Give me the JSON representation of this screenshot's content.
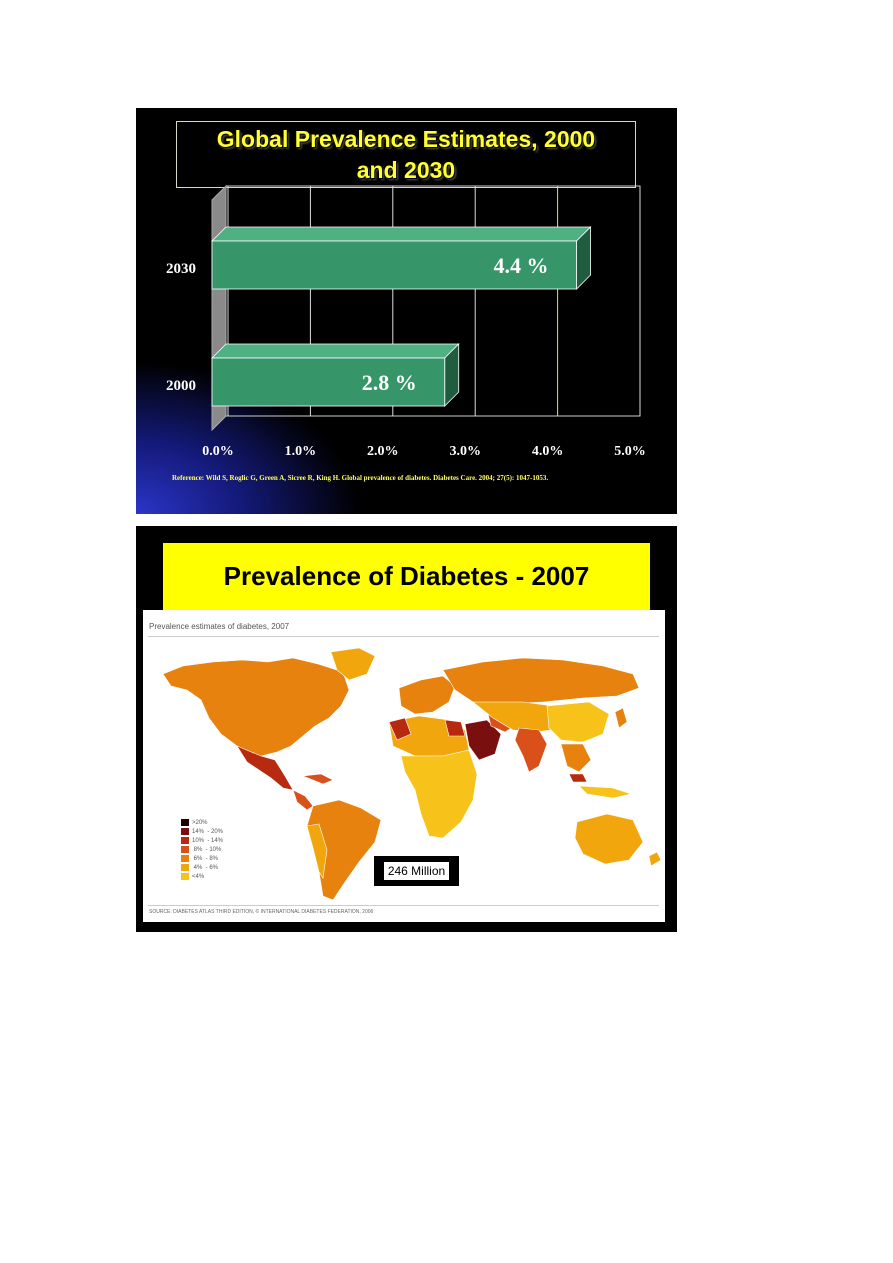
{
  "slide1": {
    "title_line1": "Global Prevalence Estimates, 2000",
    "title_line2": "and 2030",
    "reference": "Reference:  Wild S, Roglic G, Green A, Sicree R, King H. Global prevalence of diabetes. Diabetes Care. 2004; 27(5): 1047-1053."
  },
  "slide2": {
    "title": "Prevalence of Diabetes - 2007",
    "map_heading": "Prevalence estimates of diabetes, 2007",
    "source": "SOURCE: DIABETES ATLAS THIRD EDITION, © INTERNATIONAL DIABETES FEDERATION, 2006",
    "total_label": "246 Million",
    "legend": [
      {
        "label": ">20%",
        "color": "#1a0000"
      },
      {
        "label": "14%  - 20%",
        "color": "#7a0f0f"
      },
      {
        "label": "10%  - 14%",
        "color": "#b82a10"
      },
      {
        "label": " 8%  - 10%",
        "color": "#d9501a"
      },
      {
        "label": " 6%  - 8%",
        "color": "#e8820f"
      },
      {
        "label": " 4%  - 6%",
        "color": "#f2a60e"
      },
      {
        "label": "<4%",
        "color": "#f7c21a"
      }
    ]
  },
  "chart_data": {
    "type": "bar",
    "orientation": "horizontal",
    "categories": [
      "2030",
      "2000"
    ],
    "values": [
      4.4,
      2.8
    ],
    "data_labels": [
      "4.4 %",
      "2.8 %"
    ],
    "xlim": [
      0,
      5
    ],
    "x_ticks": [
      "0.0%",
      "1.0%",
      "2.0%",
      "3.0%",
      "4.0%",
      "5.0%"
    ],
    "grid": true,
    "bar_color": "#36966a"
  }
}
